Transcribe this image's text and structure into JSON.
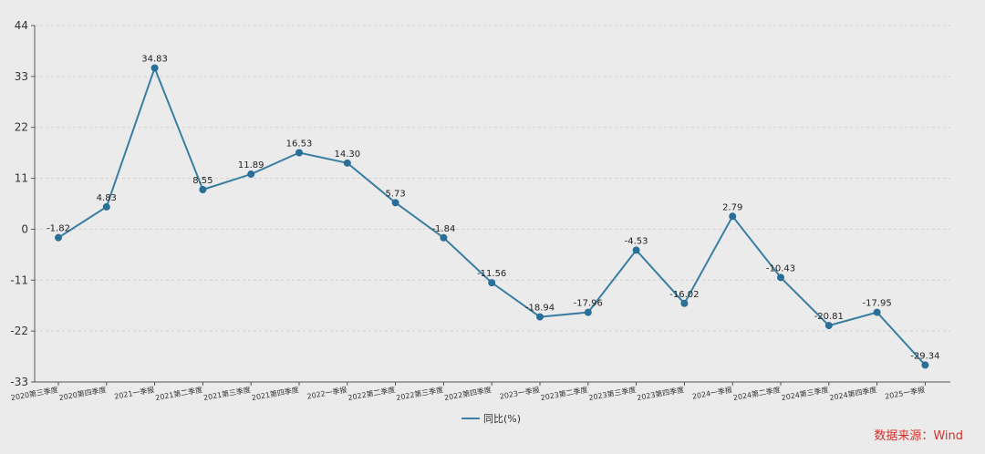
{
  "chart_data": {
    "type": "line",
    "categories": [
      "2020第三季度",
      "2020第四季度",
      "2021一季报",
      "2021第二季度",
      "2021第三季度",
      "2021第四季度",
      "2022一季报",
      "2022第二季度",
      "2022第三季度",
      "2022第四季度",
      "2023一季报",
      "2023第二季度",
      "2023第三季度",
      "2023第四季度",
      "2024一季报",
      "2024第二季度",
      "2024第三季度",
      "2024第四季度",
      "2025一季报"
    ],
    "series": [
      {
        "name": "同比(%)",
        "values": [
          -1.82,
          4.83,
          34.83,
          8.55,
          11.89,
          16.53,
          14.3,
          5.73,
          -1.84,
          -11.56,
          -18.94,
          -17.96,
          -4.53,
          -16.02,
          2.79,
          -10.43,
          -20.81,
          -17.95,
          -29.34
        ]
      }
    ],
    "data_labels": [
      "-1.82",
      "4.83",
      "34.83",
      "8.55",
      "11.89",
      "16.53",
      "14.30",
      "5.73",
      "-1.84",
      "-11.56",
      "-18.94",
      "-17.96",
      "-4.53",
      "-16.02",
      "2.79",
      "-10.43",
      "-20.81",
      "-17.95",
      "-29.34"
    ],
    "y_ticks": [
      44,
      33,
      22,
      11,
      0,
      -11,
      -22,
      -33
    ],
    "ylim": [
      -33,
      44
    ],
    "title": "",
    "xlabel": "",
    "ylabel": "",
    "grid": true,
    "legend_position": "bottom-center",
    "colors": {
      "line": "#3a7ea1",
      "marker": "#2a6f97",
      "grid": "#cfcfcf",
      "axis": "#555555"
    }
  },
  "footer": {
    "source": "数据来源：Wind"
  }
}
